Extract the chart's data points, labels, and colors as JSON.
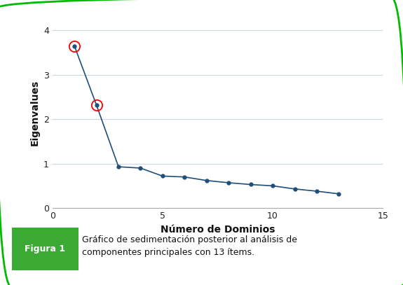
{
  "x": [
    1,
    2,
    3,
    4,
    5,
    6,
    7,
    8,
    9,
    10,
    11,
    12,
    13
  ],
  "y": [
    3.65,
    2.32,
    0.93,
    0.9,
    0.72,
    0.7,
    0.62,
    0.57,
    0.53,
    0.5,
    0.43,
    0.38,
    0.32
  ],
  "circled_indices": [
    0,
    1
  ],
  "line_color": "#1f4e79",
  "marker_color": "#1f4e79",
  "circle_color": "red",
  "xlabel": "Número de Dominios",
  "ylabel": "Eigenvalues",
  "xlim": [
    0,
    15
  ],
  "ylim": [
    0,
    4.3
  ],
  "xticks": [
    0,
    5,
    10,
    15
  ],
  "yticks": [
    0,
    1,
    2,
    3,
    4
  ],
  "grid_color": "#c8d8e8",
  "background_color": "#ffffff",
  "caption_label": "Figura 1",
  "caption_label_bg": "#3aaa35",
  "caption_text": "Gráfico de sedimentación posterior al análisis de\ncomponentes principales con 13 ítems.",
  "border_color": "#00bb00",
  "fig_bg": "#ffffff",
  "tick_color": "#222222",
  "axis_label_fontsize": 10,
  "tick_fontsize": 9
}
